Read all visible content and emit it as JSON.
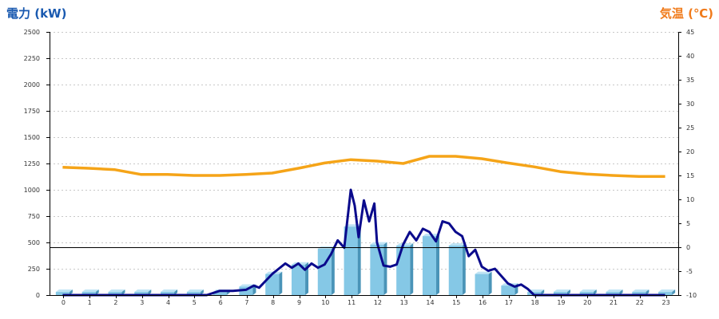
{
  "chart_data": {
    "type": "bar",
    "left_axis_title": "電力 (kW)",
    "right_axis_title": "気温 (℃)",
    "categories": [
      "0",
      "1",
      "2",
      "3",
      "4",
      "5",
      "6",
      "7",
      "8",
      "9",
      "10",
      "11",
      "12",
      "13",
      "14",
      "15",
      "16",
      "17",
      "18",
      "19",
      "20",
      "21",
      "22",
      "23"
    ],
    "y_left": {
      "min": 0,
      "max": 2500,
      "ticks": [
        0,
        250,
        500,
        750,
        1000,
        1250,
        1500,
        1750,
        2000,
        2250,
        2500
      ]
    },
    "y_right": {
      "min": -10,
      "max": 45,
      "ticks": [
        -10,
        -5,
        0,
        5,
        10,
        15,
        20,
        25,
        30,
        35,
        40,
        45
      ]
    },
    "grid": true,
    "series": [
      {
        "type": "bar",
        "axis": "left",
        "values": [
          30,
          30,
          30,
          30,
          30,
          30,
          30,
          80,
          200,
          290,
          440,
          650,
          480,
          470,
          560,
          470,
          200,
          90,
          30,
          30,
          30,
          30,
          30,
          30
        ]
      },
      {
        "type": "line",
        "axis": "left",
        "x": [
          0,
          1,
          2,
          3,
          4,
          5,
          5.5,
          6,
          6.5,
          7,
          7.3,
          7.5,
          8,
          8.25,
          8.5,
          8.75,
          9,
          9.25,
          9.5,
          9.75,
          10,
          10.25,
          10.5,
          10.75,
          11,
          11.15,
          11.3,
          11.5,
          11.7,
          11.9,
          12,
          12.25,
          12.5,
          12.75,
          13,
          13.25,
          13.5,
          13.75,
          14,
          14.25,
          14.5,
          14.75,
          15,
          15.25,
          15.5,
          15.75,
          16,
          16.25,
          16.5,
          17,
          17.25,
          17.5,
          17.75,
          18,
          19,
          20,
          21,
          22,
          23
        ],
        "values": [
          0,
          0,
          0,
          0,
          0,
          0,
          0,
          40,
          40,
          50,
          90,
          70,
          200,
          250,
          300,
          260,
          300,
          240,
          300,
          260,
          290,
          390,
          520,
          450,
          1000,
          850,
          550,
          900,
          700,
          870,
          500,
          280,
          270,
          290,
          480,
          600,
          520,
          630,
          600,
          510,
          700,
          680,
          600,
          560,
          370,
          430,
          270,
          230,
          250,
          110,
          80,
          100,
          60,
          0,
          0,
          0,
          0,
          0,
          0
        ]
      },
      {
        "type": "line",
        "axis": "right",
        "x": [
          0,
          1,
          2,
          3,
          4,
          5,
          6,
          7,
          8,
          9,
          10,
          11,
          12,
          13,
          14,
          15,
          16,
          17,
          18,
          19,
          20,
          21,
          22,
          23
        ],
        "values": [
          16.7,
          16.5,
          16.2,
          15.2,
          15.2,
          15.0,
          15.0,
          15.2,
          15.5,
          16.5,
          17.6,
          18.3,
          18.0,
          17.5,
          19.0,
          19.0,
          18.5,
          17.6,
          16.8,
          15.8,
          15.3,
          15.0,
          14.8,
          14.8
        ]
      }
    ],
    "colors": {
      "bars": "#85c8e6",
      "bars_side": "#4a94b8",
      "bars_top": "#bfe4f5",
      "power_line": "#0a0a8c",
      "temperature_line": "#f5a418",
      "left_title": "#1a5ab0",
      "right_title": "#f07a1a"
    }
  }
}
